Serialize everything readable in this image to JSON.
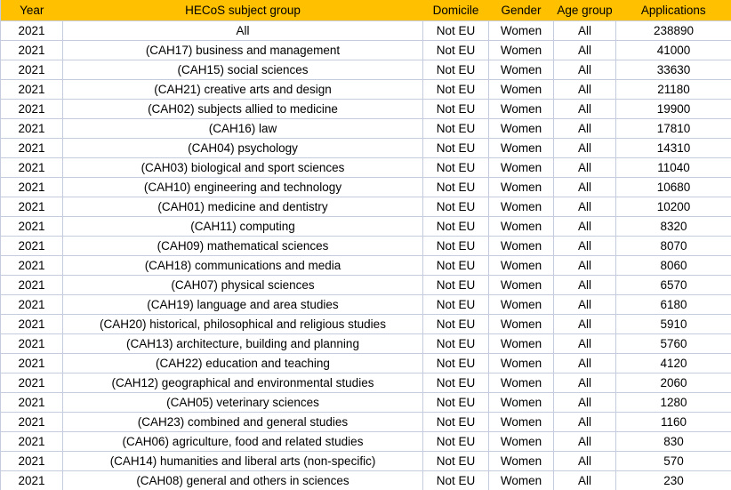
{
  "chart_data": {
    "type": "table",
    "columns": [
      "Year",
      "HECoS subject group",
      "Domicile",
      "Gender",
      "Age group",
      "Applications"
    ],
    "rows": [
      [
        "2021",
        "All",
        "Not EU",
        "Women",
        "All",
        "238890"
      ],
      [
        "2021",
        "(CAH17) business and management",
        "Not EU",
        "Women",
        "All",
        "41000"
      ],
      [
        "2021",
        "(CAH15) social sciences",
        "Not EU",
        "Women",
        "All",
        "33630"
      ],
      [
        "2021",
        "(CAH21) creative arts and design",
        "Not EU",
        "Women",
        "All",
        "21180"
      ],
      [
        "2021",
        "(CAH02) subjects allied to medicine",
        "Not EU",
        "Women",
        "All",
        "19900"
      ],
      [
        "2021",
        "(CAH16) law",
        "Not EU",
        "Women",
        "All",
        "17810"
      ],
      [
        "2021",
        "(CAH04) psychology",
        "Not EU",
        "Women",
        "All",
        "14310"
      ],
      [
        "2021",
        "(CAH03) biological and sport sciences",
        "Not EU",
        "Women",
        "All",
        "11040"
      ],
      [
        "2021",
        "(CAH10) engineering and technology",
        "Not EU",
        "Women",
        "All",
        "10680"
      ],
      [
        "2021",
        "(CAH01) medicine and dentistry",
        "Not EU",
        "Women",
        "All",
        "10200"
      ],
      [
        "2021",
        "(CAH11) computing",
        "Not EU",
        "Women",
        "All",
        "8320"
      ],
      [
        "2021",
        "(CAH09) mathematical sciences",
        "Not EU",
        "Women",
        "All",
        "8070"
      ],
      [
        "2021",
        "(CAH18) communications and media",
        "Not EU",
        "Women",
        "All",
        "8060"
      ],
      [
        "2021",
        "(CAH07) physical sciences",
        "Not EU",
        "Women",
        "All",
        "6570"
      ],
      [
        "2021",
        "(CAH19) language and area studies",
        "Not EU",
        "Women",
        "All",
        "6180"
      ],
      [
        "2021",
        "(CAH20) historical, philosophical and religious studies",
        "Not EU",
        "Women",
        "All",
        "5910"
      ],
      [
        "2021",
        "(CAH13) architecture, building and planning",
        "Not EU",
        "Women",
        "All",
        "5760"
      ],
      [
        "2021",
        "(CAH22) education and teaching",
        "Not EU",
        "Women",
        "All",
        "4120"
      ],
      [
        "2021",
        "(CAH12) geographical and environmental studies",
        "Not EU",
        "Women",
        "All",
        "2060"
      ],
      [
        "2021",
        "(CAH05) veterinary sciences",
        "Not EU",
        "Women",
        "All",
        "1280"
      ],
      [
        "2021",
        "(CAH23) combined and general studies",
        "Not EU",
        "Women",
        "All",
        "1160"
      ],
      [
        "2021",
        "(CAH06) agriculture, food and related studies",
        "Not EU",
        "Women",
        "All",
        "830"
      ],
      [
        "2021",
        "(CAH14) humanities and liberal arts (non-specific)",
        "Not EU",
        "Women",
        "All",
        "570"
      ],
      [
        "2021",
        "(CAH08) general and others in sciences",
        "Not EU",
        "Women",
        "All",
        "230"
      ]
    ]
  },
  "colors": {
    "header_bg": "#FFC000",
    "header_text": "#000000",
    "grid": "#C4CCDE",
    "row_bg": "#FFFFFF",
    "text": "#000000"
  }
}
